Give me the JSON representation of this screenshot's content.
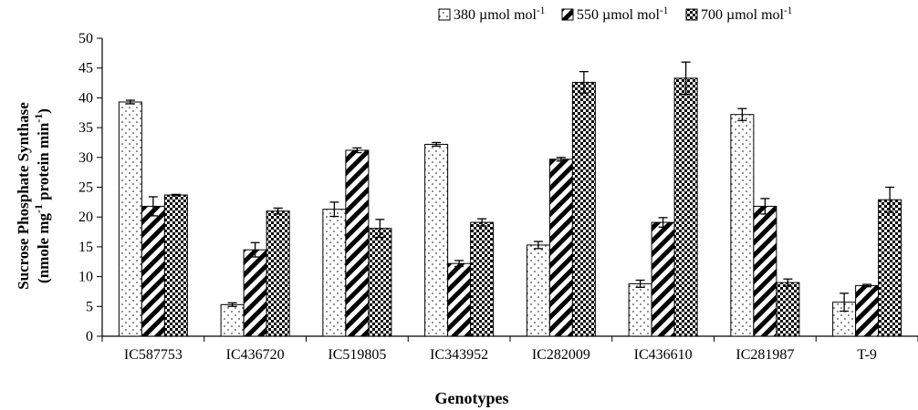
{
  "chart_data": {
    "type": "bar",
    "xlabel": "Genotypes",
    "ylabel_line1": "Sucrose Phosphate Synthase",
    "ylabel_line2": "(nmole mg-1 protein min-1)",
    "ylim": [
      0,
      50
    ],
    "yticks": [
      0,
      5,
      10,
      15,
      20,
      25,
      30,
      35,
      40,
      45,
      50
    ],
    "grid": false,
    "legend_position": "top-right",
    "categories": [
      "IC587753",
      "IC436720",
      "IC519805",
      "IC343952",
      "IC282009",
      "IC436610",
      "IC281987",
      "T-9"
    ],
    "series": [
      {
        "name": "380 µmol mol-1",
        "pattern": "dots",
        "values": [
          39.3,
          5.3,
          21.3,
          32.2,
          15.3,
          8.8,
          37.2,
          5.7
        ],
        "errors": [
          0.3,
          0.3,
          1.2,
          0.3,
          0.6,
          0.6,
          1.0,
          1.5
        ]
      },
      {
        "name": "550 µmol mol-1",
        "pattern": "diagonal-stripes",
        "values": [
          21.8,
          14.5,
          31.2,
          12.2,
          29.7,
          19.1,
          21.8,
          8.5
        ],
        "errors": [
          1.6,
          1.2,
          0.4,
          0.5,
          0.3,
          0.8,
          1.3,
          0.2
        ]
      },
      {
        "name": "700 µmol mol-1",
        "pattern": "checker",
        "values": [
          23.7,
          21.0,
          18.1,
          19.1,
          42.6,
          43.3,
          9.0,
          22.9
        ],
        "errors": [
          0.1,
          0.5,
          1.5,
          0.6,
          1.8,
          2.7,
          0.6,
          2.1
        ]
      }
    ]
  }
}
